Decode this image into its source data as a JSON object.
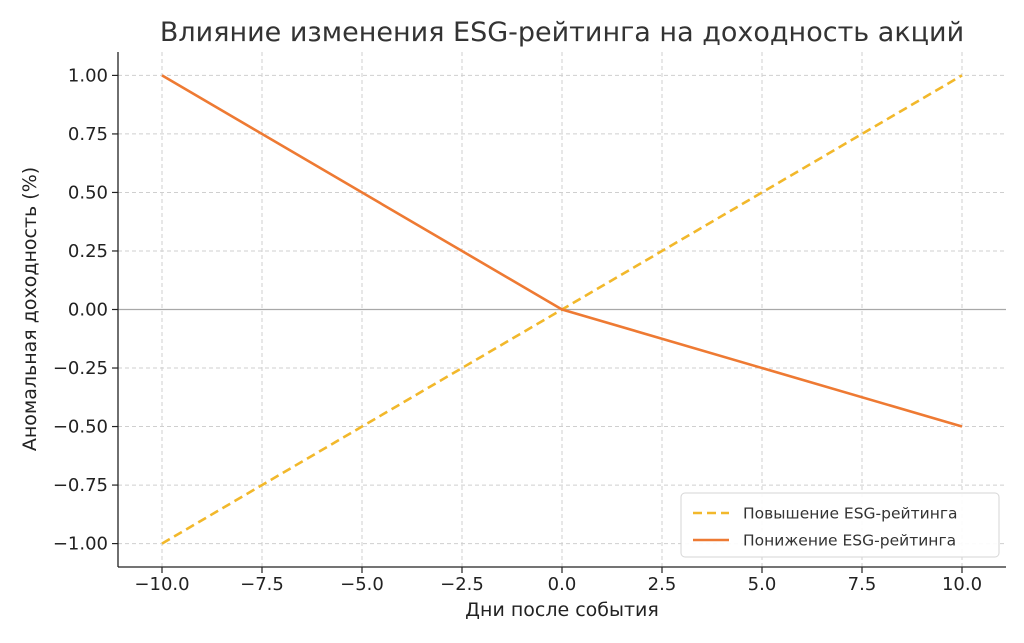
{
  "chart_data": {
    "type": "line",
    "title": "Влияние изменения ESG-рейтинга на доходность акций",
    "xlabel": "Дни после события",
    "ylabel": "Аномальная доходность (%)",
    "xlim": [
      -11.1,
      11.1
    ],
    "ylim": [
      -1.1,
      1.1
    ],
    "x_ticks": [
      -10.0,
      -7.5,
      -5.0,
      -2.5,
      0.0,
      2.5,
      5.0,
      7.5,
      10.0
    ],
    "x_tick_labels": [
      "−10.0",
      "−7.5",
      "−5.0",
      "−2.5",
      "0.0",
      "2.5",
      "5.0",
      "7.5",
      "10.0"
    ],
    "y_ticks": [
      1.0,
      0.75,
      0.5,
      0.25,
      0.0,
      -0.25,
      -0.5,
      -0.75,
      -1.0
    ],
    "y_tick_labels": [
      "1.00",
      "0.75",
      "0.50",
      "0.25",
      "0.00",
      "−0.25",
      "−0.50",
      "−0.75",
      "−1.00"
    ],
    "grid": true,
    "zero_line": true,
    "legend_position": "bottom-right",
    "series": [
      {
        "name": "Повышение ESG-рейтинга",
        "color": "#f2b82b",
        "style": "dashed",
        "x": [
          -10,
          0,
          10
        ],
        "y": [
          -1.0,
          0.0,
          1.0
        ]
      },
      {
        "name": "Понижение ESG-рейтинга",
        "color": "#ee7a33",
        "style": "solid",
        "x": [
          -10,
          0,
          10
        ],
        "y": [
          1.0,
          0.0,
          -0.5
        ]
      }
    ]
  }
}
